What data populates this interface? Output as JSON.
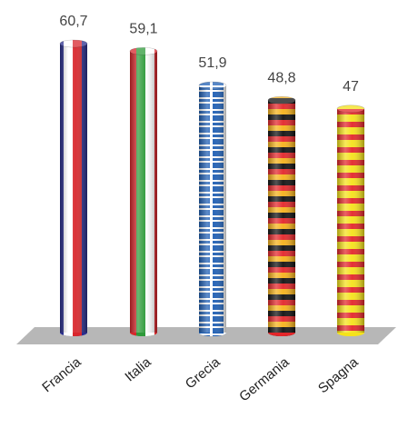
{
  "chart_data": {
    "type": "bar",
    "categories": [
      "Francia",
      "Italia",
      "Grecia",
      "Germania",
      "Spagna"
    ],
    "values": [
      60.7,
      59.1,
      51.9,
      48.8,
      47
    ],
    "value_labels": [
      "60,7",
      "59,1",
      "51,9",
      "48,8",
      "47"
    ],
    "ylim": [
      0,
      65
    ],
    "grid": false,
    "legend": "none",
    "bar_style": "3d-cylinder",
    "patterns": [
      "french-flag-vertical-stripes",
      "italian-flag-vertical-stripes",
      "greek-flag-pattern",
      "german-flag-horizontal-bands",
      "spanish-yellow-red-bands"
    ],
    "colors": {
      "floor": "#b7b7b7",
      "francia": [
        "#2a2f8f",
        "#ffffff",
        "#d9262c"
      ],
      "italia": [
        "#2e9a3a",
        "#ffffff",
        "#d9262c"
      ],
      "grecia": [
        "#1f5fb4",
        "#ffffff"
      ],
      "germania": [
        "#111111",
        "#e3262a",
        "#f6b21b"
      ],
      "spagna": [
        "#f5e21a",
        "#e3262a"
      ]
    }
  }
}
